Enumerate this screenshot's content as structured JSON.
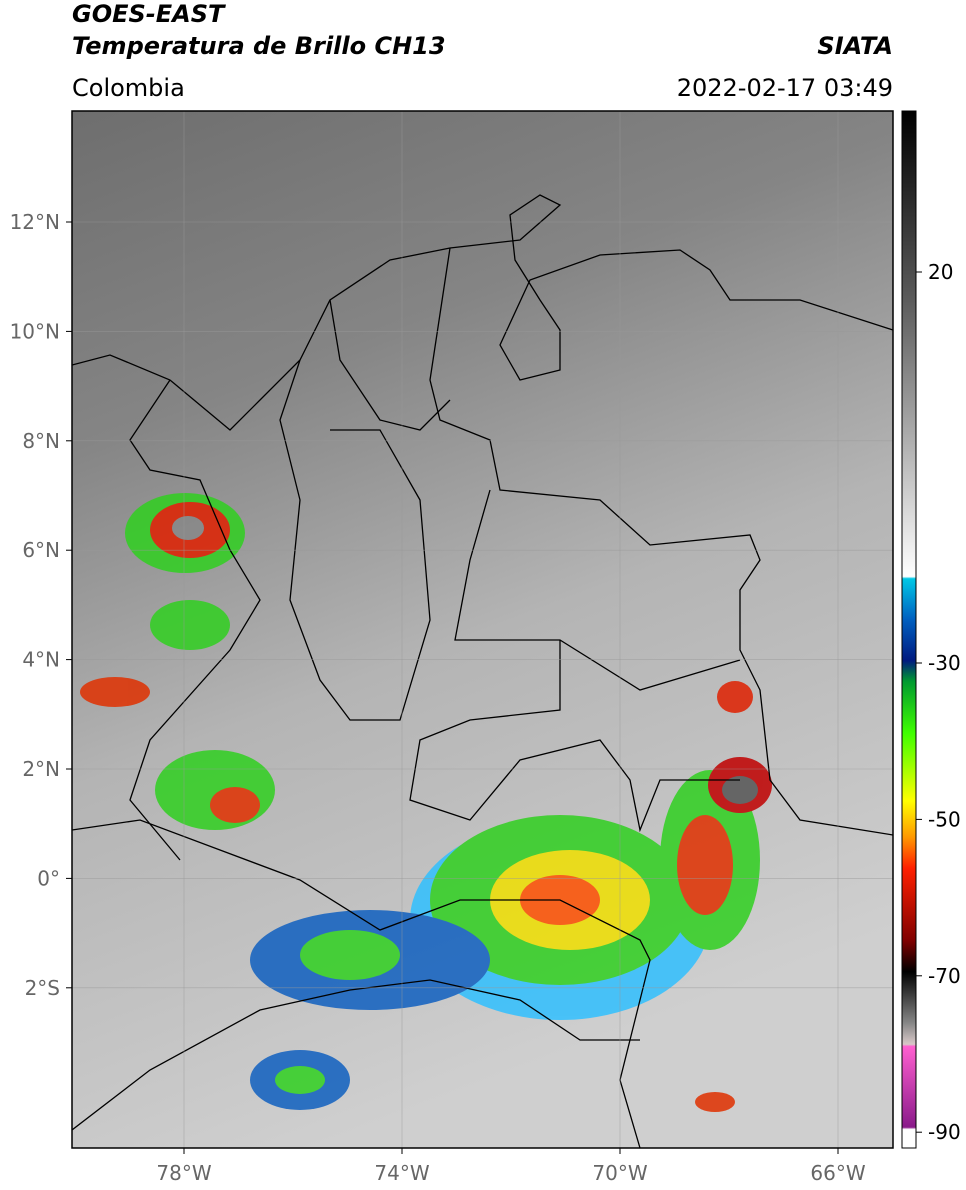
{
  "header": {
    "title": "GOES-EAST",
    "subtitle": "Temperatura de Brillo CH13",
    "region": "Colombia",
    "source": "SIATA",
    "datetime": "2022-02-17 03:49"
  },
  "map": {
    "lat_labels": [
      "12°N",
      "10°N",
      "8°N",
      "6°N",
      "4°N",
      "2°N",
      "0°",
      "2°S"
    ],
    "lon_labels": [
      "78°W",
      "74°W",
      "70°W",
      "66°W"
    ]
  },
  "colorbar": {
    "labels": [
      20,
      -30,
      -50,
      -70,
      -90
    ]
  }
}
